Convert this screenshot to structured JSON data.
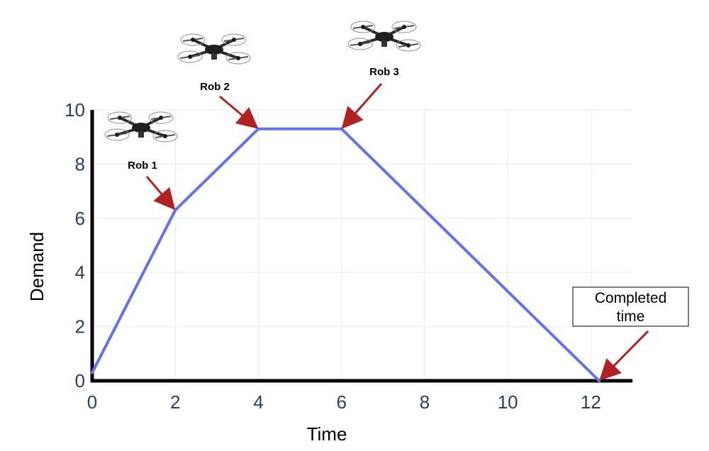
{
  "chart_data": {
    "type": "line",
    "title": "",
    "xlabel": "Time",
    "ylabel": "Demand",
    "xlim": [
      0,
      13
    ],
    "ylim": [
      0,
      10
    ],
    "x_ticks": [
      0,
      2,
      4,
      6,
      8,
      10,
      12
    ],
    "y_ticks": [
      0,
      2,
      4,
      6,
      8,
      10
    ],
    "grid": true,
    "series": [
      {
        "x": [
          0,
          2,
          4,
          6,
          12.2
        ],
        "y": [
          0.3,
          6.3,
          9.3,
          9.3,
          0
        ],
        "color": "#6670f5"
      }
    ],
    "annotations": [
      {
        "label": "Rob 1",
        "x": 2,
        "y": 6.3,
        "drone": true
      },
      {
        "label": "Rob 2",
        "x": 4,
        "y": 9.3,
        "drone": true
      },
      {
        "label": "Rob 3",
        "x": 6,
        "y": 9.3,
        "drone": true
      },
      {
        "label_lines": [
          "Completed",
          "time"
        ],
        "x": 12.2,
        "y": 0,
        "boxed": true
      }
    ],
    "arrow_color": "#b22222"
  }
}
